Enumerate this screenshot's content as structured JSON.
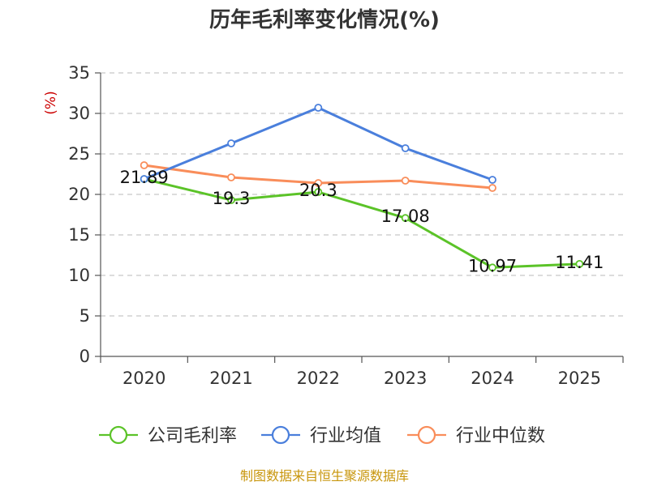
{
  "chart_data": {
    "type": "line",
    "title": "历年毛利率变化情况(%)",
    "ylabel": "(%)",
    "xlabel": "",
    "categories": [
      "2020",
      "2021",
      "2022",
      "2023",
      "2024",
      "2025"
    ],
    "ylim": [
      0,
      35
    ],
    "yticks": [
      0,
      5,
      10,
      15,
      20,
      25,
      30,
      35
    ],
    "grid": true,
    "legend_position": "bottom",
    "series": [
      {
        "name": "公司毛利率",
        "color": "#5bc328",
        "values": [
          21.89,
          19.3,
          20.3,
          17.08,
          10.97,
          11.41
        ],
        "labels": [
          "21.89",
          "19.3",
          "20.3",
          "17.08",
          "10.97",
          "11.41"
        ]
      },
      {
        "name": "行业均值",
        "color": "#4a7fdc",
        "values": [
          21.9,
          26.3,
          30.7,
          25.7,
          21.8,
          null
        ]
      },
      {
        "name": "行业中位数",
        "color": "#f98d5a",
        "values": [
          23.6,
          22.1,
          21.4,
          21.7,
          20.8,
          null
        ]
      }
    ],
    "source": "制图数据来自恒生聚源数据库"
  }
}
